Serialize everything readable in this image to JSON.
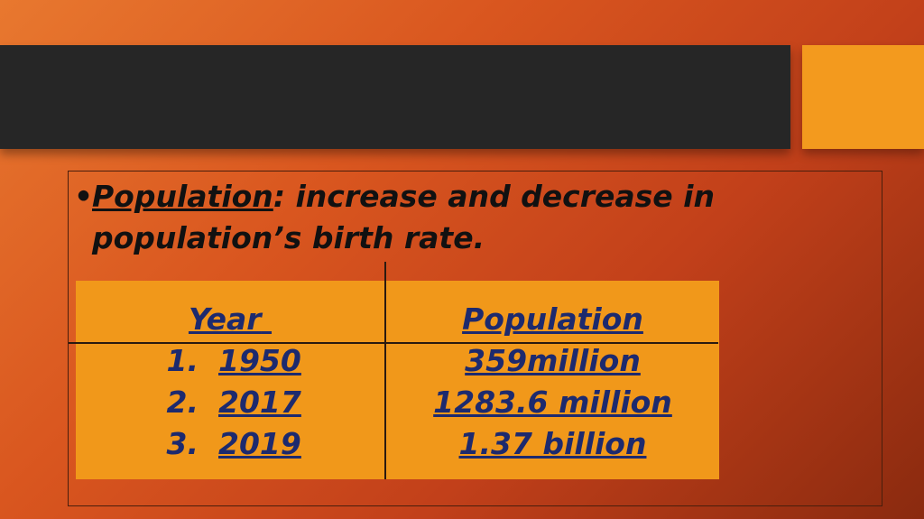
{
  "slide": {
    "bullet": {
      "symbol": "•",
      "keyword": "Population",
      "rest_line1": ": increase and decrease in",
      "line2": "population’s birth rate."
    },
    "table": {
      "headers": [
        "Year",
        "Population"
      ],
      "rows": [
        {
          "num": "1.",
          "year": "1950",
          "population": "359million"
        },
        {
          "num": "2.",
          "year": "2017",
          "population": "1283.6 million"
        },
        {
          "num": "3.",
          "year": "2019",
          "population": "1.37 billion"
        }
      ]
    },
    "colors": {
      "background": "#d9561f",
      "title_bar": "#262626",
      "accent": "#f39a1e",
      "table_bg": "#f1981a",
      "table_text": "#1d2a6e"
    }
  }
}
